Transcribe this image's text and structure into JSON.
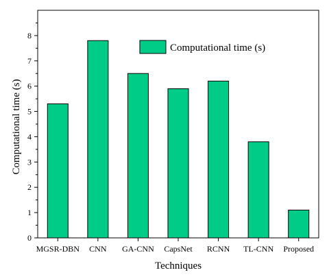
{
  "chart_data": {
    "type": "bar",
    "categories": [
      "MGSR-DBN",
      "CNN",
      "GA-CNN",
      "CapsNet",
      "RCNN",
      "TL-CNN",
      "Proposed"
    ],
    "series": [
      {
        "name": "Computational time (s)",
        "values": [
          5.3,
          7.8,
          6.5,
          5.9,
          6.2,
          3.8,
          1.1
        ]
      }
    ],
    "xlabel": "Techniques",
    "ylabel": "Computational time (s)",
    "ylim": [
      0,
      9
    ],
    "yticks": [
      0,
      1,
      2,
      3,
      4,
      5,
      6,
      7,
      8
    ],
    "grid": false,
    "legend_position": "top-right",
    "colors": {
      "bar_fill": "#00CC88",
      "bar_stroke": "#000000",
      "axis": "#000000"
    }
  }
}
